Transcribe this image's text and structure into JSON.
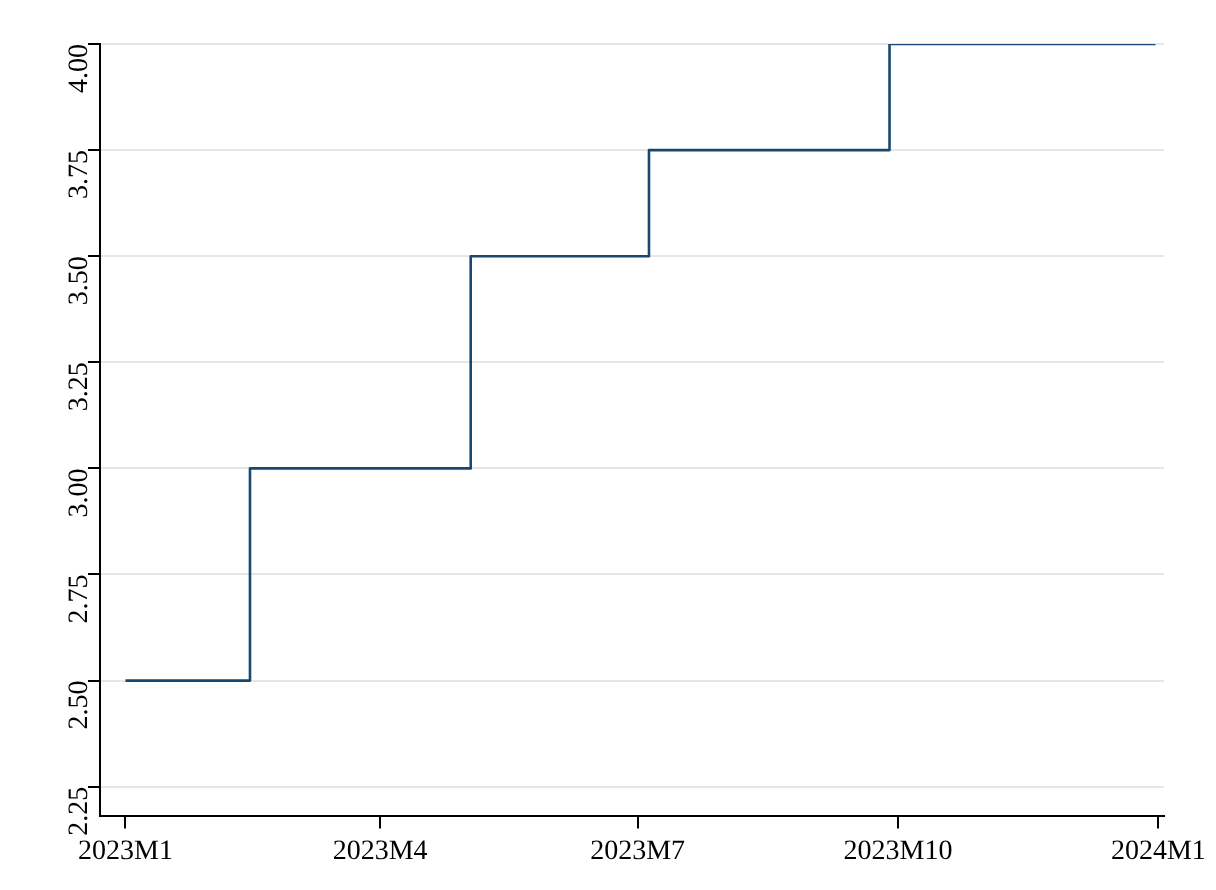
{
  "chart_data": {
    "type": "step",
    "x": [
      "2023-01-01",
      "2023-02-14",
      "2023-05-03",
      "2023-07-05",
      "2023-09-28",
      "2023-12-31"
    ],
    "series": [
      {
        "color": "#1a476f",
        "values": [
          2.5,
          3.0,
          3.5,
          3.75,
          4.0,
          4.0
        ]
      }
    ],
    "xlim": [
      "2022-12-23",
      "2024-01-03"
    ],
    "xticks": [
      {
        "value": "2023-01-01",
        "label": "2023M1"
      },
      {
        "value": "2023-04-01",
        "label": "2023M4"
      },
      {
        "value": "2023-07-01",
        "label": "2023M7"
      },
      {
        "value": "2023-10-01",
        "label": "2023M10"
      },
      {
        "value": "2024-01-01",
        "label": "2024M1"
      }
    ],
    "ylim": [
      2.18,
      4.0
    ],
    "yticks": [
      {
        "value": 2.25,
        "label": "2.25"
      },
      {
        "value": 2.5,
        "label": "2.50"
      },
      {
        "value": 2.75,
        "label": "2.75"
      },
      {
        "value": 3.0,
        "label": "3.00"
      },
      {
        "value": 3.25,
        "label": "3.25"
      },
      {
        "value": 3.5,
        "label": "3.50"
      },
      {
        "value": 3.75,
        "label": "3.75"
      },
      {
        "value": 4.0,
        "label": "4.00"
      }
    ],
    "grid": "y",
    "marker": "none",
    "line_style": "solid"
  }
}
